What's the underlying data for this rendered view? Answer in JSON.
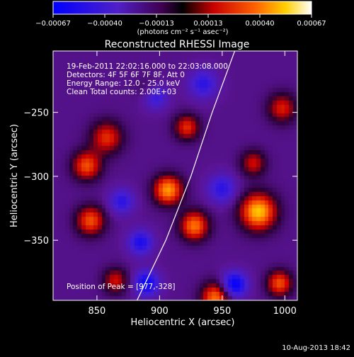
{
  "chart_data": {
    "type": "heatmap",
    "title": "Reconstructed RHESSI Image",
    "xlabel": "Heliocentric X (arcsec)",
    "ylabel": "Heliocentric Y (arcsec)",
    "xlim": [
      815,
      1010
    ],
    "ylim": [
      -397,
      -202
    ],
    "x_ticks": [
      850,
      900,
      950,
      1000
    ],
    "y_ticks": [
      -250,
      -300,
      -350
    ],
    "colorbar": {
      "range": [
        -0.00067,
        0.00067
      ],
      "tick_labels": [
        "-0.00067",
        "-0.00040",
        "-0.00013",
        "0.00013",
        "0.00040",
        "0.00067"
      ],
      "unit_label": "(photons cm⁻² s⁻¹ asec⁻²)",
      "colormap": "blue-purple-red-yellow-white"
    },
    "annotations": [
      "19-Feb-2011 22:02:16.000 to 22:03:08.000",
      "Detectors: 4F 5F 6F 7F 8F, Att 0",
      "Energy Range: 12.0 - 25.0 keV",
      "Clean     Total counts: 2.00E+03"
    ],
    "peak_label": "Position of Peak = [977,-328]",
    "timestamp": "10-Aug-2013 18:42",
    "limb_curve": [
      [
        882,
        -397
      ],
      [
        905,
        -350
      ],
      [
        925,
        -300
      ],
      [
        942,
        -250
      ],
      [
        960,
        -202
      ]
    ],
    "sources": [
      {
        "x": 979,
        "y": -328,
        "amp": 1.0,
        "sigma": 10
      },
      {
        "x": 907,
        "y": -311,
        "amp": 0.9,
        "sigma": 8
      },
      {
        "x": 858,
        "y": -270,
        "amp": 0.6,
        "sigma": 9
      },
      {
        "x": 842,
        "y": -292,
        "amp": 0.7,
        "sigma": 8
      },
      {
        "x": 922,
        "y": -262,
        "amp": 0.6,
        "sigma": 7
      },
      {
        "x": 928,
        "y": -339,
        "amp": 0.8,
        "sigma": 8
      },
      {
        "x": 845,
        "y": -335,
        "amp": 0.7,
        "sigma": 8
      },
      {
        "x": 865,
        "y": -382,
        "amp": 0.5,
        "sigma": 7
      },
      {
        "x": 945,
        "y": -395,
        "amp": 0.8,
        "sigma": 8
      },
      {
        "x": 998,
        "y": -247,
        "amp": 0.55,
        "sigma": 8
      },
      {
        "x": 996,
        "y": -384,
        "amp": 0.7,
        "sigma": 7
      },
      {
        "x": 975,
        "y": -290,
        "amp": 0.5,
        "sigma": 7
      },
      {
        "x": 893,
        "y": -234,
        "amp": 0.4,
        "sigma": 7
      },
      {
        "x": 896,
        "y": -237,
        "amp": -0.7,
        "sigma": 7
      },
      {
        "x": 885,
        "y": -352,
        "amp": -0.6,
        "sigma": 7
      },
      {
        "x": 960,
        "y": -385,
        "amp": -0.8,
        "sigma": 7
      },
      {
        "x": 890,
        "y": -384,
        "amp": -0.7,
        "sigma": 7
      },
      {
        "x": 935,
        "y": -228,
        "amp": -0.5,
        "sigma": 8
      },
      {
        "x": 950,
        "y": -310,
        "amp": -0.5,
        "sigma": 8
      },
      {
        "x": 870,
        "y": -320,
        "amp": -0.5,
        "sigma": 7
      }
    ]
  }
}
